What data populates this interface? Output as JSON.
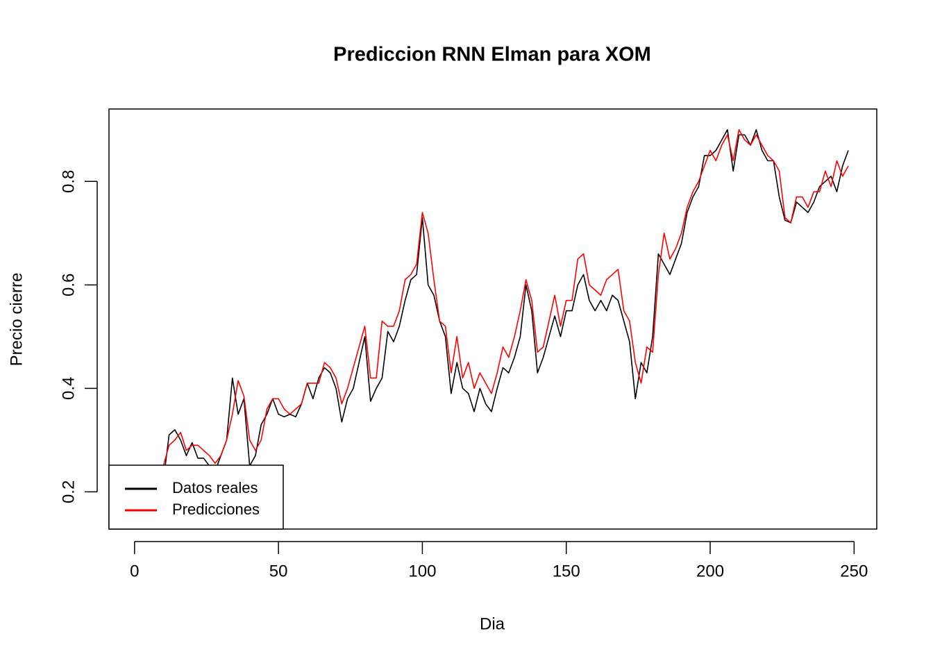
{
  "chart_data": {
    "type": "line",
    "title": "Prediccion RNN Elman para  XOM",
    "x_label": "Dia",
    "y_label": "Precio cierre",
    "x": [
      2,
      4,
      6,
      8,
      10,
      12,
      14,
      16,
      18,
      20,
      22,
      24,
      26,
      28,
      30,
      32,
      34,
      36,
      38,
      40,
      42,
      44,
      46,
      48,
      50,
      52,
      54,
      56,
      58,
      60,
      62,
      64,
      66,
      68,
      70,
      72,
      74,
      76,
      78,
      80,
      82,
      84,
      86,
      88,
      90,
      92,
      94,
      96,
      98,
      100,
      102,
      104,
      106,
      108,
      110,
      112,
      114,
      116,
      118,
      120,
      122,
      124,
      126,
      128,
      130,
      132,
      134,
      136,
      138,
      140,
      142,
      144,
      146,
      148,
      150,
      152,
      154,
      156,
      158,
      160,
      162,
      164,
      166,
      168,
      170,
      172,
      174,
      176,
      178,
      180,
      182,
      184,
      186,
      188,
      190,
      192,
      194,
      196,
      198,
      200,
      202,
      204,
      206,
      208,
      210,
      212,
      214,
      216,
      218,
      220,
      222,
      224,
      226,
      228,
      230,
      232,
      234,
      236,
      238,
      240,
      242,
      244,
      246,
      248
    ],
    "series": [
      {
        "name": "Datos reales",
        "color": "#000000",
        "values": [
          0.21,
          0.2,
          0.19,
          0.2,
          0.22,
          0.31,
          0.32,
          0.3,
          0.27,
          0.295,
          0.265,
          0.265,
          0.25,
          0.24,
          0.27,
          0.3,
          0.42,
          0.35,
          0.38,
          0.25,
          0.27,
          0.33,
          0.35,
          0.38,
          0.35,
          0.345,
          0.35,
          0.345,
          0.37,
          0.41,
          0.38,
          0.42,
          0.44,
          0.43,
          0.4,
          0.335,
          0.38,
          0.4,
          0.45,
          0.5,
          0.375,
          0.4,
          0.42,
          0.51,
          0.49,
          0.52,
          0.57,
          0.61,
          0.62,
          0.73,
          0.6,
          0.58,
          0.53,
          0.5,
          0.39,
          0.45,
          0.4,
          0.39,
          0.355,
          0.4,
          0.37,
          0.355,
          0.4,
          0.44,
          0.43,
          0.46,
          0.5,
          0.6,
          0.55,
          0.43,
          0.46,
          0.5,
          0.54,
          0.5,
          0.55,
          0.55,
          0.6,
          0.62,
          0.57,
          0.55,
          0.57,
          0.55,
          0.58,
          0.57,
          0.53,
          0.49,
          0.38,
          0.45,
          0.43,
          0.5,
          0.66,
          0.64,
          0.62,
          0.65,
          0.68,
          0.74,
          0.77,
          0.79,
          0.85,
          0.85,
          0.86,
          0.88,
          0.9,
          0.82,
          0.89,
          0.89,
          0.87,
          0.9,
          0.86,
          0.84,
          0.84,
          0.77,
          0.725,
          0.72,
          0.76,
          0.75,
          0.74,
          0.76,
          0.79,
          0.8,
          0.81,
          0.78,
          0.83,
          0.86
        ]
      },
      {
        "name": "Predicciones",
        "color": "#ff0000",
        "values": [
          null,
          null,
          null,
          null,
          0.25,
          0.29,
          0.3,
          0.315,
          0.28,
          0.29,
          0.29,
          0.28,
          0.27,
          0.255,
          0.27,
          0.3,
          0.35,
          0.415,
          0.385,
          0.3,
          0.28,
          0.3,
          0.36,
          0.38,
          0.38,
          0.36,
          0.35,
          0.36,
          0.37,
          0.41,
          0.41,
          0.41,
          0.45,
          0.44,
          0.42,
          0.37,
          0.4,
          0.44,
          0.48,
          0.52,
          0.42,
          0.42,
          0.53,
          0.52,
          0.52,
          0.55,
          0.61,
          0.62,
          0.64,
          0.74,
          0.7,
          0.61,
          0.53,
          0.52,
          0.43,
          0.5,
          0.42,
          0.45,
          0.4,
          0.43,
          0.41,
          0.39,
          0.43,
          0.48,
          0.46,
          0.5,
          0.55,
          0.61,
          0.57,
          0.47,
          0.48,
          0.53,
          0.58,
          0.52,
          0.57,
          0.57,
          0.65,
          0.66,
          0.6,
          0.59,
          0.58,
          0.61,
          0.62,
          0.63,
          0.55,
          0.53,
          0.45,
          0.41,
          0.48,
          0.47,
          0.62,
          0.7,
          0.65,
          0.67,
          0.7,
          0.75,
          0.78,
          0.8,
          0.83,
          0.86,
          0.84,
          0.87,
          0.89,
          0.84,
          0.9,
          0.88,
          0.87,
          0.89,
          0.87,
          0.85,
          0.84,
          0.82,
          0.73,
          0.72,
          0.77,
          0.77,
          0.75,
          0.78,
          0.78,
          0.82,
          0.79,
          0.84,
          0.81,
          0.83
        ]
      }
    ],
    "xlim": [
      -8.88,
      257.88
    ],
    "ylim": [
      0.128,
      0.94
    ],
    "xticks": [
      0,
      50,
      100,
      150,
      200,
      250
    ],
    "yticks": [
      0.2,
      0.4,
      0.6,
      0.8
    ],
    "legend": "bottomleft"
  }
}
